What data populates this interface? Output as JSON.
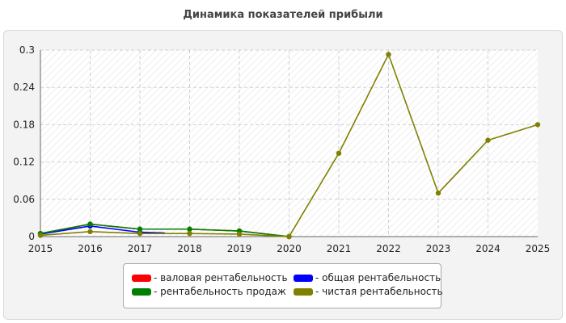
{
  "chart_data": {
    "type": "line",
    "title": "Динамика показателей прибыли",
    "xlabel": "",
    "ylabel": "",
    "x": [
      "2015",
      "2016",
      "2017",
      "2018",
      "2019",
      "2020",
      "2021",
      "2022",
      "2023",
      "2024",
      "2025"
    ],
    "xlim": [
      2015,
      2025
    ],
    "ylim": [
      0,
      0.3
    ],
    "yticks": [
      "0",
      "0.06",
      "0.12",
      "0.18",
      "0.24",
      "0.3"
    ],
    "grid": true,
    "legend_position": "bottom",
    "series": [
      {
        "name": "валовая рентабельность",
        "color": "#ff0000",
        "points": [
          [
            2015,
            0.005
          ],
          [
            2016,
            0.02
          ],
          [
            2017,
            0.012
          ],
          [
            2018,
            0.012
          ],
          [
            2019,
            0.009
          ],
          [
            2020,
            0.0
          ]
        ]
      },
      {
        "name": "общая рентабельность",
        "color": "#0000ff",
        "points": [
          [
            2015,
            0.004
          ],
          [
            2016,
            0.017
          ],
          [
            2017,
            0.007
          ],
          [
            2017.5,
            0.006
          ]
        ]
      },
      {
        "name": "рентабельность продаж",
        "color": "#008000",
        "points": [
          [
            2015,
            0.005
          ],
          [
            2016,
            0.02
          ],
          [
            2017,
            0.012
          ],
          [
            2018,
            0.012
          ],
          [
            2019,
            0.009
          ],
          [
            2020,
            0.0
          ]
        ]
      },
      {
        "name": "чистая рентабельность",
        "color": "#808000",
        "points": [
          [
            2015,
            0.002
          ],
          [
            2016,
            0.008
          ],
          [
            2017,
            0.005
          ],
          [
            2018,
            0.005
          ],
          [
            2019,
            0.004
          ],
          [
            2020,
            0.0
          ],
          [
            2021,
            0.134
          ],
          [
            2022,
            0.293
          ],
          [
            2023,
            0.07
          ],
          [
            2024,
            0.155
          ],
          [
            2025,
            0.18
          ]
        ]
      }
    ]
  }
}
